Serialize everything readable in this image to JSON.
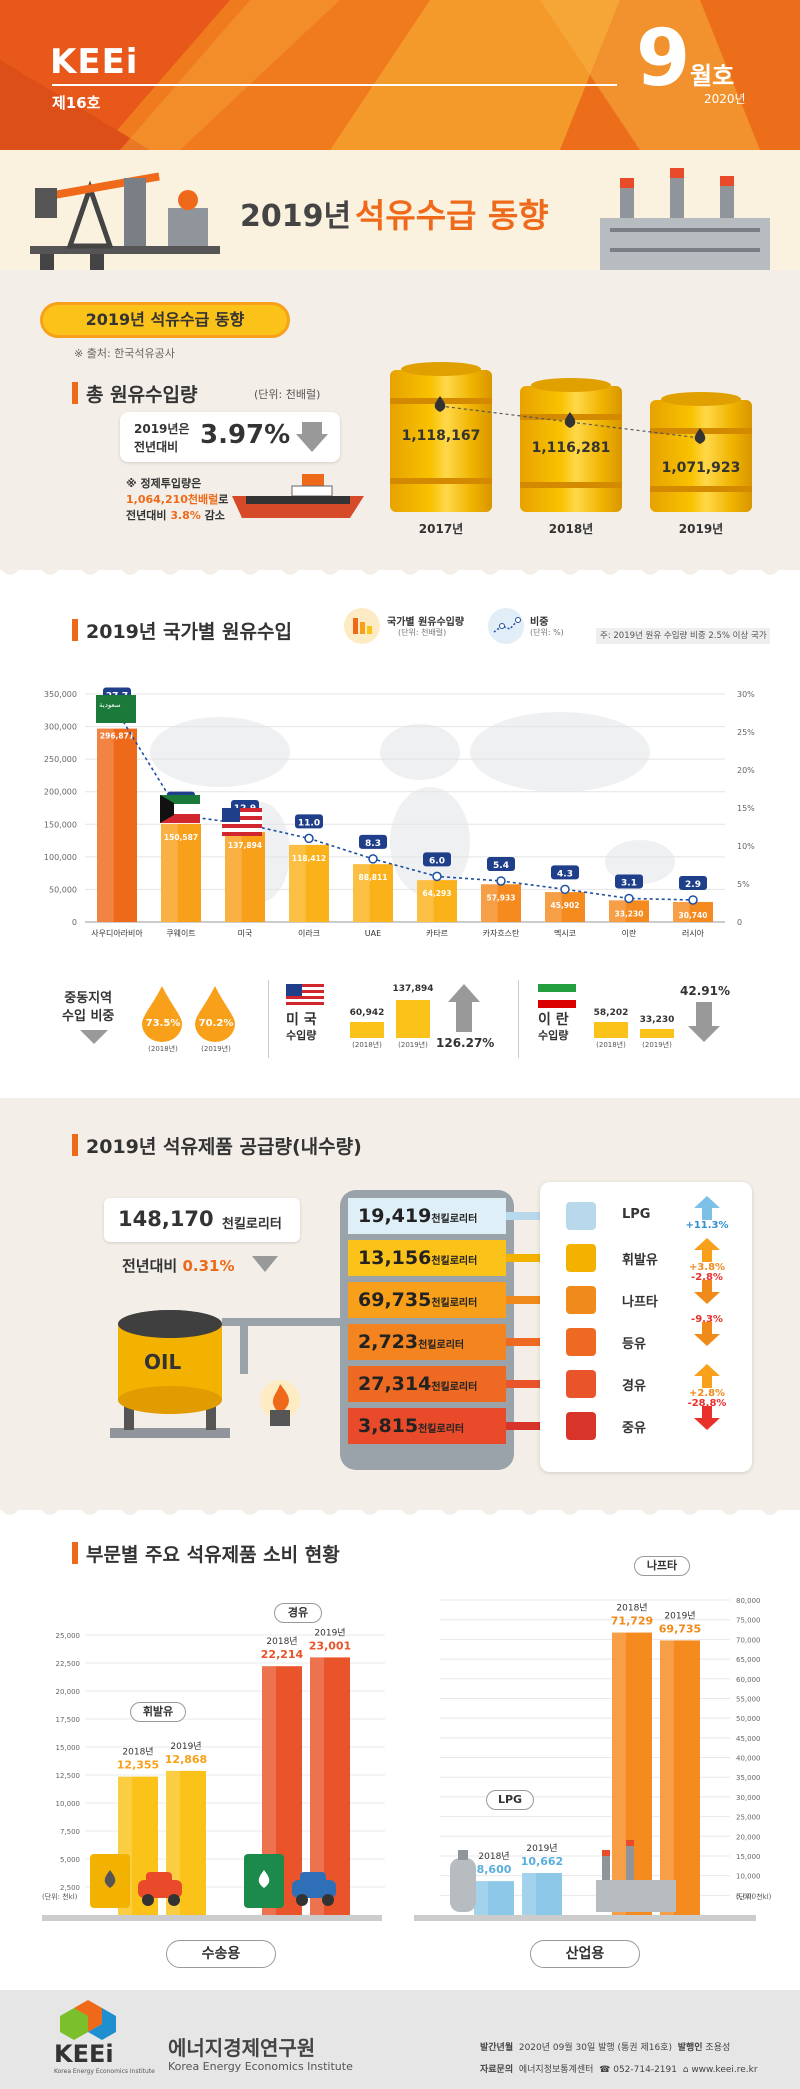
{
  "header": {
    "brand": "KEEi",
    "issue": "제16호",
    "month_num": "9",
    "month_label": "월호",
    "year": "2020년"
  },
  "main_title": {
    "part1": "2019년",
    "part2": "석유수급 동향"
  },
  "section1": {
    "banner": "2019년 석유수급 동향",
    "source": "※ 출처: 한국석유공사",
    "title": "총 원유수입량",
    "unit": "(단위: 천배럴)",
    "change_label_line1": "2019년은",
    "change_label_line2": "전년대비",
    "change_value": "3.97%",
    "note_line1": "※ 정제투입량은",
    "note_line2_highlight": "1,064,210천배럴",
    "note_line2_rest": "로",
    "note_line3_prefix": "전년대비 ",
    "note_line3_highlight": "3.8%",
    "note_line3_rest": " 감소",
    "barrels": [
      {
        "value": "1,118,167",
        "year": "2017년"
      },
      {
        "value": "1,116,281",
        "year": "2018년"
      },
      {
        "value": "1,071,923",
        "year": "2019년"
      }
    ]
  },
  "section2": {
    "title": "2019년 국가별 원유수입",
    "legend_bar": "국가별 원유수입량",
    "legend_bar_unit": "(단위: 천배럴)",
    "legend_line": "비중",
    "legend_line_unit": "(단위: %)",
    "note": "주: 2019년 원유 수입량 비중 2.5% 이상 국가",
    "flag_text": "سعودية"
  },
  "chart_data": {
    "type": "bar",
    "categories": [
      "사우디아라비아",
      "쿠웨이트",
      "미국",
      "이라크",
      "UAE",
      "카타르",
      "카자흐스탄",
      "멕시코",
      "이란",
      "러시아"
    ],
    "values": [
      296871,
      150587,
      137894,
      118412,
      88811,
      64293,
      57933,
      45902,
      33230,
      30740
    ],
    "value_labels": [
      "296,871",
      "150,587",
      "137,894",
      "118,412",
      "88,811",
      "64,293",
      "57,933",
      "45,902",
      "33,230",
      "30,740"
    ],
    "share": [
      27.7,
      14.0,
      12.9,
      11.0,
      8.3,
      6.0,
      5.4,
      4.3,
      3.1,
      2.9
    ],
    "share_labels": [
      "27.7",
      "14.0",
      "12.9",
      "11.0",
      "8.3",
      "6.0",
      "5.4",
      "4.3",
      "3.1",
      "2.9"
    ],
    "ylim": [
      0,
      350000
    ],
    "y2lim": [
      0,
      30
    ],
    "yticks": [
      "0",
      "50,000",
      "100,000",
      "150,000",
      "200,000",
      "250,000",
      "300,000",
      "350,000"
    ],
    "y2ticks": [
      "0",
      "5%",
      "10%",
      "15%",
      "20%",
      "25%",
      "30%"
    ]
  },
  "middle_east": {
    "label_line1": "중동지역",
    "label_line2": "수입 비중",
    "v2018": "73.5%",
    "v2019": "70.2%",
    "y2018": "(2018년)",
    "y2019": "(2019년)"
  },
  "usa": {
    "label_line1": "미 국",
    "label_line2": "수입량",
    "v2018": "60,942",
    "v2019": "137,894",
    "y2018": "(2018년)",
    "y2019": "(2019년)",
    "change": "126.27%"
  },
  "iran": {
    "label_line1": "이 란",
    "label_line2": "수입량",
    "v2018": "58,202",
    "v2019": "33,230",
    "y2018": "(2018년)",
    "y2019": "(2019년)",
    "change": "42.91%"
  },
  "section3": {
    "title": "2019년 석유제품 공급량(내수량)",
    "total": "148,170",
    "total_unit": "천킬로리터",
    "change_prefix": "전년대비 ",
    "change_value": "0.31%",
    "oil_label": "OIL",
    "unit": "천킬로리터",
    "products": [
      {
        "value": "19,419",
        "name": "LPG",
        "change": "+11.3%",
        "dir": "up",
        "bg": "#dfeff8"
      },
      {
        "value": "13,156",
        "name": "휘발유",
        "change": "+3.8%",
        "dir": "up",
        "bg": "#fbc21a"
      },
      {
        "value": "69,735",
        "name": "나프타",
        "change": "-2.8%",
        "dir": "down",
        "bg": "#f8a01a"
      },
      {
        "value": "2,723",
        "name": "등유",
        "change": "-9.3%",
        "dir": "down",
        "bg": "#f4841f"
      },
      {
        "value": "27,314",
        "name": "경유",
        "change": "+2.8%",
        "dir": "up",
        "bg": "#ee6a22"
      },
      {
        "value": "3,815",
        "name": "중유",
        "change": "-28.8%",
        "dir": "down",
        "bg": "#e94a2a"
      }
    ]
  },
  "section4": {
    "title": "부문별 주요 석유제품 소비 현황",
    "unit": "(단위: 천kl)",
    "left_ticks": [
      "2,500",
      "5,000",
      "7,500",
      "10,000",
      "12,500",
      "15,000",
      "17,500",
      "20,000",
      "22,500",
      "25,000"
    ],
    "right_ticks": [
      "5,000",
      "10,000",
      "15,000",
      "20,000",
      "25,000",
      "30,000",
      "35,000",
      "40,000",
      "45,000",
      "50,000",
      "55,000",
      "60,000",
      "65,000",
      "70,000",
      "75,000",
      "80,000"
    ],
    "gasoline": {
      "label": "휘발유",
      "y2018": "2018년",
      "y2019": "2019년",
      "v2018": "12,355",
      "v2019": "12,868"
    },
    "diesel": {
      "label": "경유",
      "y2018": "2018년",
      "y2019": "2019년",
      "v2018": "22,214",
      "v2019": "23,001"
    },
    "lpg": {
      "label": "LPG",
      "y2018": "2018년",
      "y2019": "2019년",
      "v2018": "8,600",
      "v2019": "10,662"
    },
    "naphtha": {
      "label": "나프타",
      "y2018": "2018년",
      "y2019": "2019년",
      "v2018": "71,729",
      "v2019": "69,735"
    },
    "transport": "수송용",
    "industry": "산업용"
  },
  "footer": {
    "logo": "KEEi",
    "logo_sub": "Korea Energy Economics Institute",
    "org_kr": "에너지경제연구원",
    "org_en": "Korea Energy Economics Institute",
    "pub_label": "발간년월",
    "pub_value": "2020년 09월 30일 발행 (통권 제16호)",
    "publisher_label": "발행인",
    "publisher": "조용성",
    "inquiry_label": "자료문의",
    "inquiry_value": "에너지정보통계센터",
    "phone": "052-714-2191",
    "web": "www.keei.re.kr"
  }
}
